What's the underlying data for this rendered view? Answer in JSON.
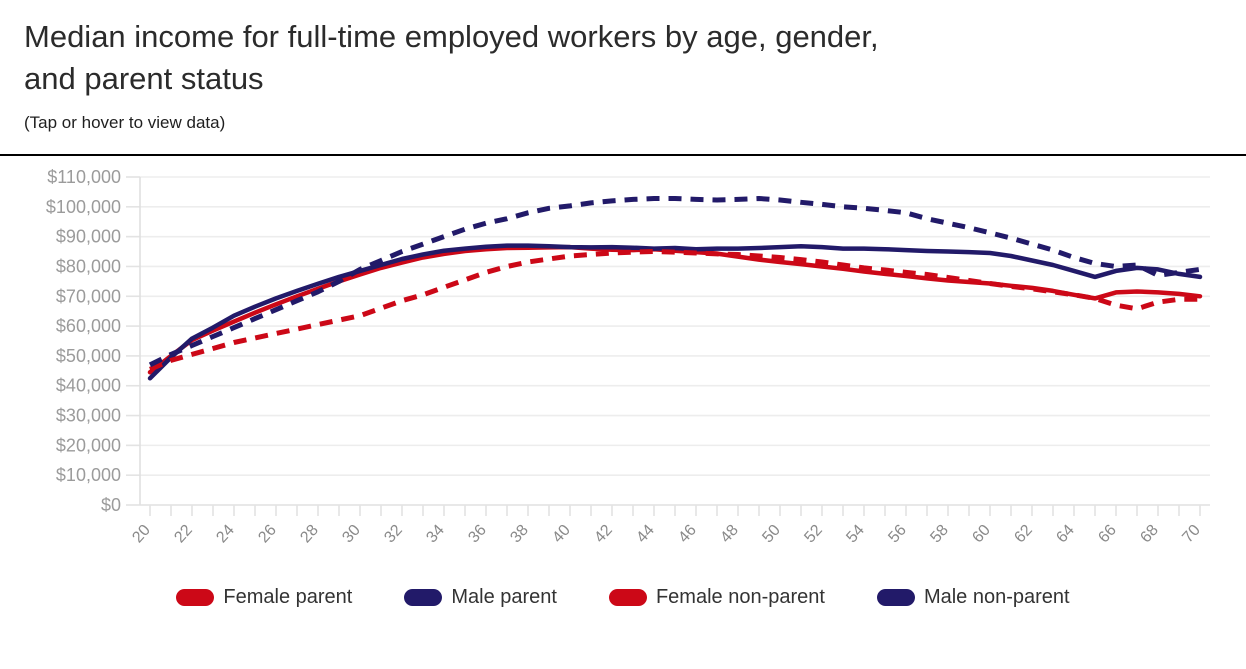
{
  "header": {
    "title_line1": "Median income for full-time employed workers by age, gender,",
    "title_line2": "and parent status",
    "subtitle": "(Tap or hover to view data)"
  },
  "colors": {
    "red": "#cc0817",
    "navy": "#221a69",
    "grid": "#ededed",
    "axis": "#e0e0e0",
    "tick": "#e3e3e3",
    "y_label": "#9b9b9b",
    "x_label": "#8a8a8a",
    "legend_text": "#333333",
    "title_text": "#2b2b2b"
  },
  "chart_data": {
    "type": "line",
    "title": "Median income for full-time employed workers by age, gender, and parent status",
    "subtitle": "(Tap or hover to view data)",
    "xlabel": "",
    "ylabel": "",
    "grid": true,
    "legend_position": "bottom",
    "xlim": [
      20,
      70
    ],
    "ylim": [
      0,
      110000
    ],
    "x": [
      20,
      21,
      22,
      23,
      24,
      25,
      26,
      27,
      28,
      29,
      30,
      31,
      32,
      33,
      34,
      35,
      36,
      37,
      38,
      39,
      40,
      41,
      42,
      43,
      44,
      45,
      46,
      47,
      48,
      49,
      50,
      51,
      52,
      53,
      54,
      55,
      56,
      57,
      58,
      59,
      60,
      61,
      62,
      63,
      64,
      65,
      66,
      67,
      68,
      69,
      70
    ],
    "x_tick_labels": [
      "20",
      "22",
      "24",
      "26",
      "28",
      "30",
      "32",
      "34",
      "36",
      "38",
      "40",
      "42",
      "44",
      "46",
      "48",
      "50",
      "52",
      "54",
      "56",
      "58",
      "60",
      "62",
      "64",
      "66",
      "68",
      "70"
    ],
    "y_tick_labels": [
      "$0",
      "$10,000",
      "$20,000",
      "$30,000",
      "$40,000",
      "$50,000",
      "$60,000",
      "$70,000",
      "$80,000",
      "$90,000",
      "$100,000",
      "$110,000"
    ],
    "series": [
      {
        "name": "Female parent",
        "style": "solid",
        "color": "#cc0817",
        "values": [
          44500,
          50000,
          55300,
          58500,
          61500,
          64500,
          67300,
          70000,
          72500,
          75000,
          77300,
          79500,
          81300,
          83000,
          84200,
          85200,
          85800,
          86200,
          86300,
          86400,
          86500,
          86000,
          85600,
          85500,
          85800,
          85300,
          84800,
          84300,
          83300,
          82300,
          81500,
          80800,
          80000,
          79200,
          78300,
          77500,
          76800,
          76000,
          75300,
          74800,
          74300,
          73500,
          72800,
          71800,
          70500,
          69300,
          71300,
          71600,
          71300,
          70800,
          70000
        ]
      },
      {
        "name": "Male parent",
        "style": "solid",
        "color": "#221a69",
        "values": [
          42500,
          49500,
          55800,
          59500,
          63500,
          66500,
          69300,
          71800,
          74200,
          76500,
          78500,
          80500,
          82500,
          84000,
          85300,
          86000,
          86600,
          87000,
          87000,
          86800,
          86500,
          86400,
          86500,
          86300,
          86000,
          86200,
          85800,
          86000,
          86000,
          86200,
          86500,
          86800,
          86500,
          86000,
          86000,
          85800,
          85500,
          85200,
          85000,
          84800,
          84500,
          83500,
          82000,
          80500,
          78500,
          76500,
          78500,
          79500,
          79000,
          77500,
          76500
        ]
      },
      {
        "name": "Female non-parent",
        "style": "dashed",
        "color": "#cc0817",
        "values": [
          45500,
          48500,
          50500,
          52500,
          54500,
          56000,
          57500,
          59000,
          60500,
          62000,
          63500,
          66000,
          68500,
          70500,
          73000,
          75500,
          78000,
          80000,
          81500,
          82500,
          83500,
          84000,
          84500,
          84800,
          85000,
          84800,
          84500,
          84200,
          84000,
          83500,
          83000,
          82300,
          81500,
          80500,
          79500,
          78800,
          78000,
          77300,
          76300,
          75300,
          74300,
          73300,
          72500,
          71500,
          70500,
          69300,
          67000,
          65800,
          68000,
          69000,
          69000
        ]
      },
      {
        "name": "Male non-parent",
        "style": "dashed",
        "color": "#221a69",
        "values": [
          47000,
          50500,
          53500,
          56500,
          59500,
          62500,
          65500,
          68500,
          71500,
          75000,
          79000,
          82000,
          85000,
          87500,
          90000,
          92500,
          94500,
          96000,
          98000,
          99500,
          100300,
          101300,
          102000,
          102500,
          102800,
          102800,
          102500,
          102300,
          102500,
          102800,
          102300,
          101500,
          100800,
          100000,
          99500,
          98800,
          98000,
          96000,
          94500,
          93000,
          91300,
          89500,
          87500,
          85500,
          83000,
          81000,
          80000,
          80500,
          77000,
          78000,
          79000
        ]
      }
    ]
  }
}
